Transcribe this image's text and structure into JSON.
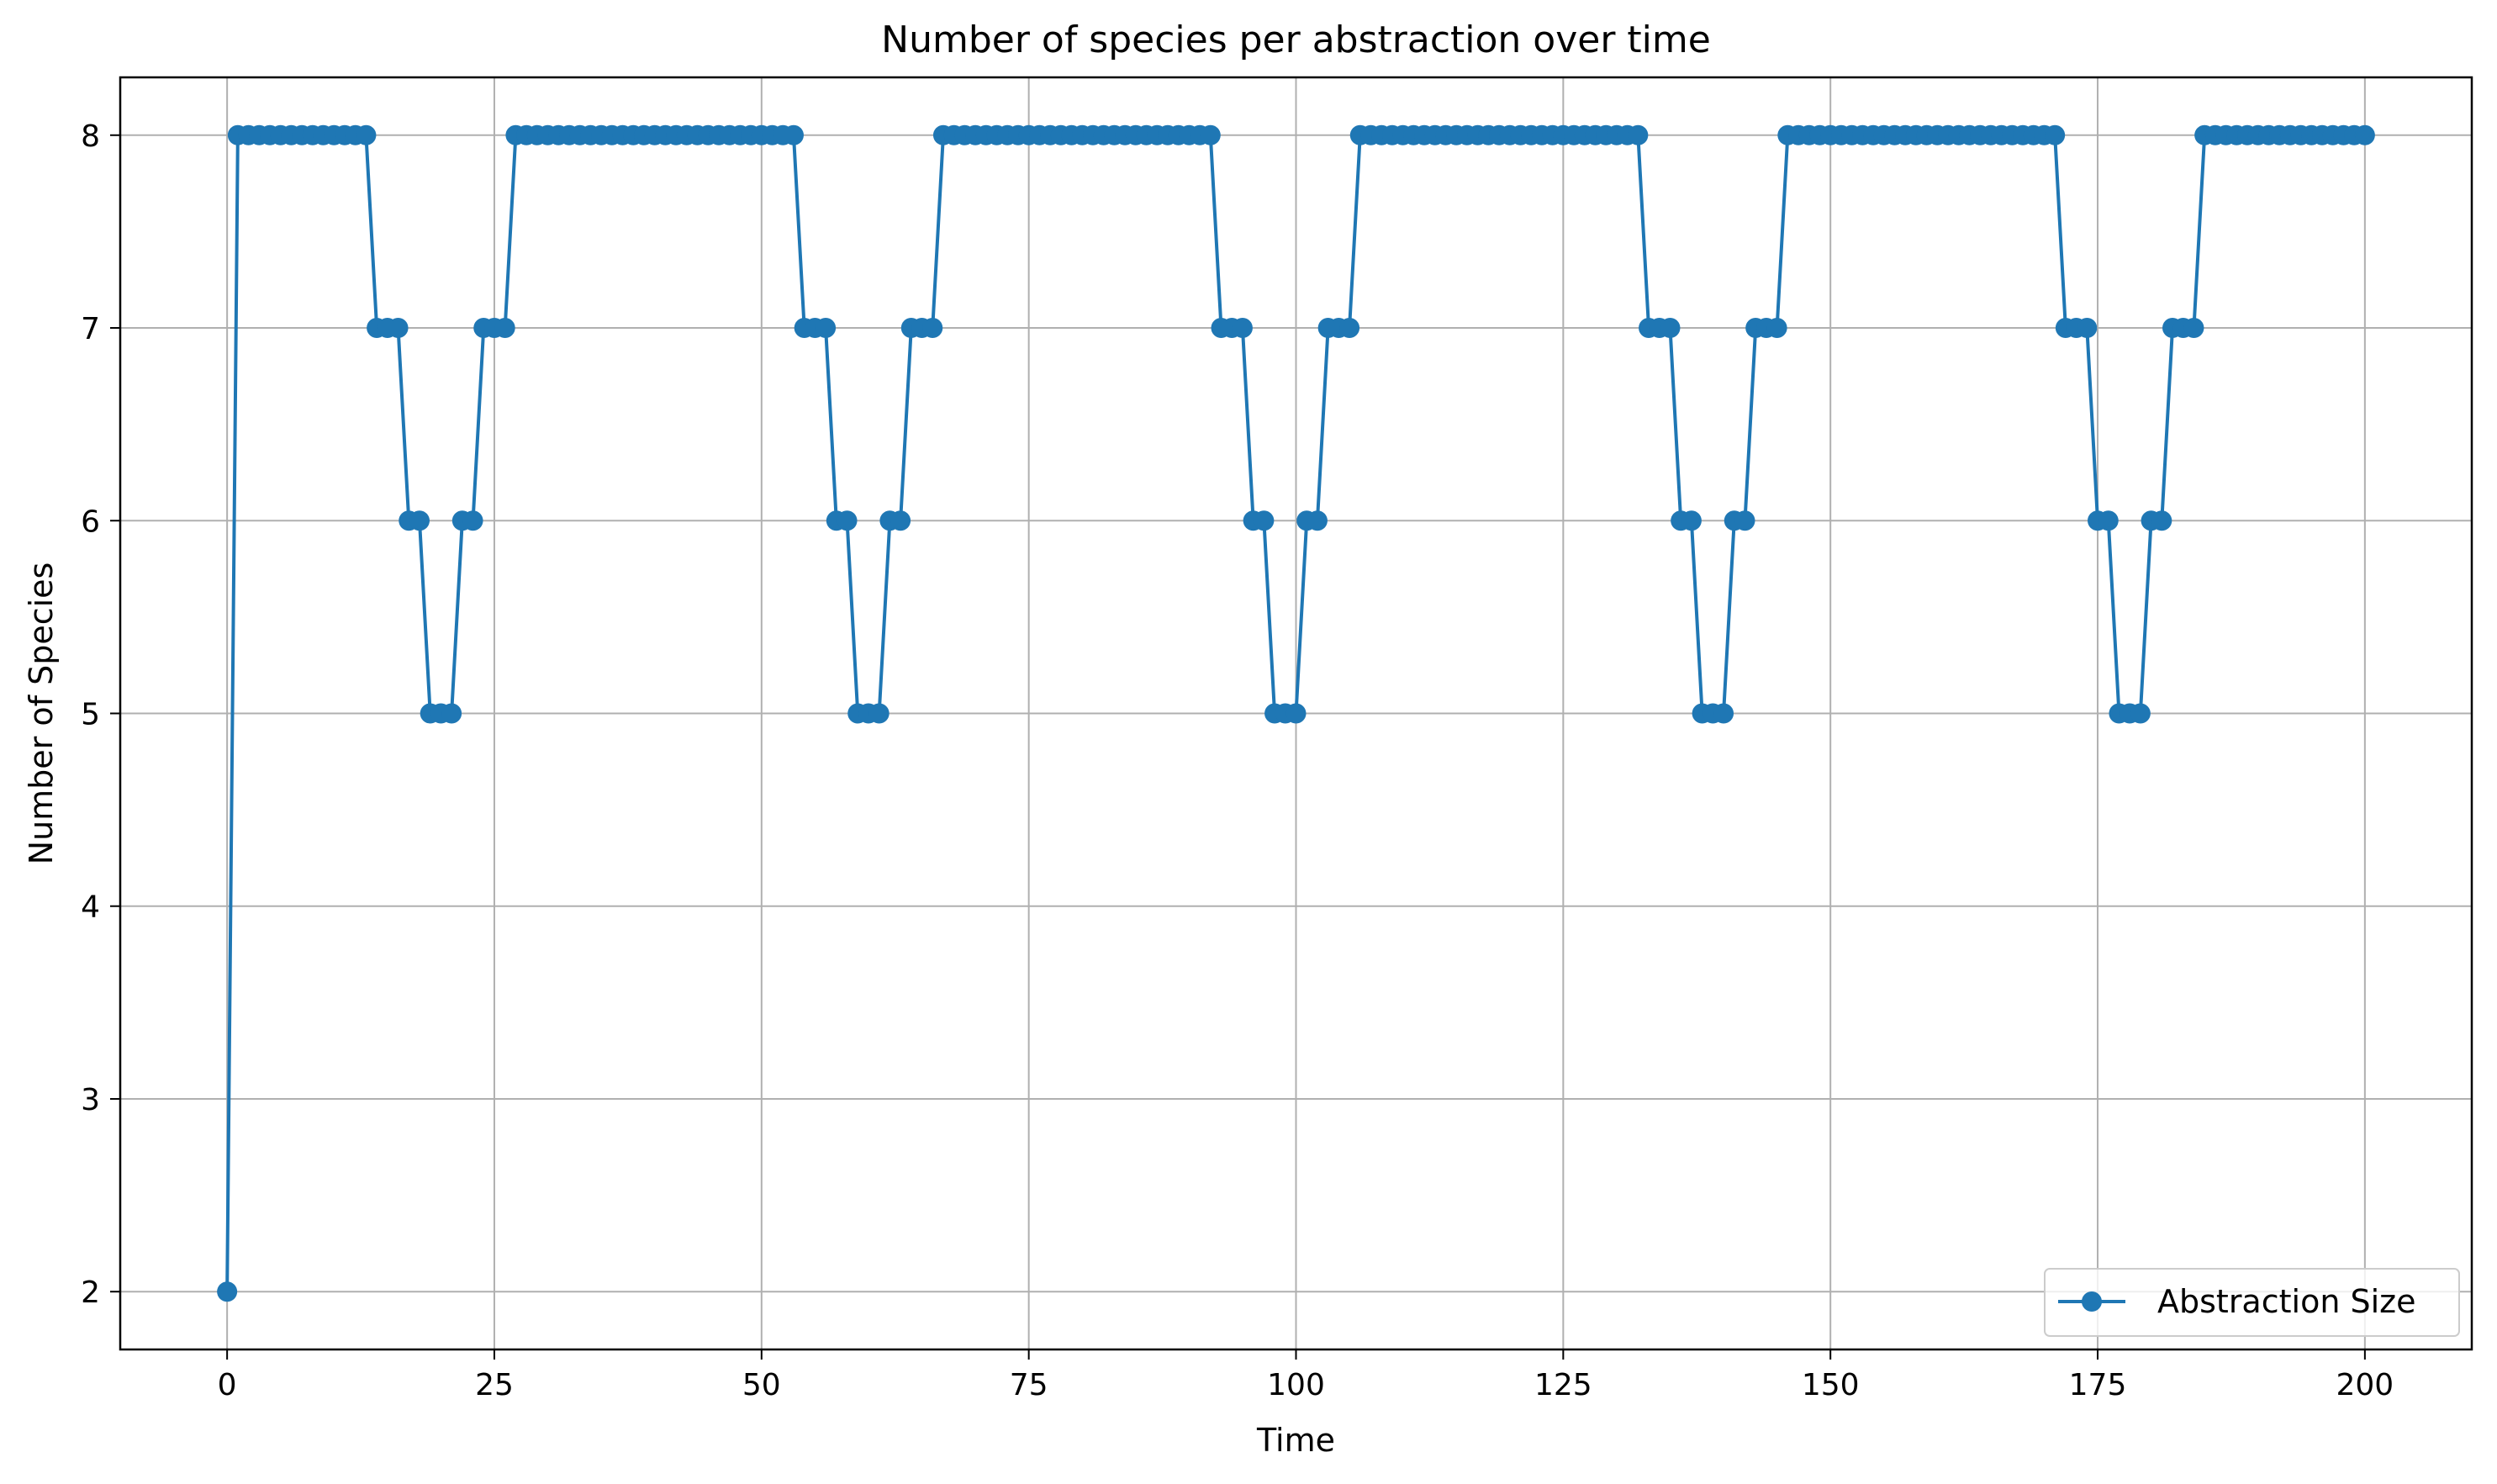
{
  "chart_data": {
    "type": "line",
    "title": "Number of species per abstraction over time",
    "xlabel": "Time",
    "ylabel": "Number of Species",
    "xlim": [
      -10,
      210
    ],
    "ylim": [
      1.7,
      8.3
    ],
    "xticks": [
      0,
      25,
      50,
      75,
      100,
      125,
      150,
      175,
      200
    ],
    "yticks": [
      2,
      3,
      4,
      5,
      6,
      7,
      8
    ],
    "grid": true,
    "legend_position": "lower-right",
    "colors": {
      "series": "#1f77b4",
      "grid": "#b0b0b0"
    },
    "series": [
      {
        "name": "Abstraction Size",
        "marker": "circle",
        "segments": [
          {
            "from": 0,
            "to": 0,
            "value": 2
          },
          {
            "from": 1,
            "to": 13,
            "value": 8
          },
          {
            "from": 14,
            "to": 16,
            "value": 7
          },
          {
            "from": 17,
            "to": 18,
            "value": 6
          },
          {
            "from": 19,
            "to": 21,
            "value": 5
          },
          {
            "from": 22,
            "to": 23,
            "value": 6
          },
          {
            "from": 24,
            "to": 26,
            "value": 7
          },
          {
            "from": 27,
            "to": 53,
            "value": 8
          },
          {
            "from": 54,
            "to": 56,
            "value": 7
          },
          {
            "from": 57,
            "to": 58,
            "value": 6
          },
          {
            "from": 59,
            "to": 61,
            "value": 5
          },
          {
            "from": 62,
            "to": 63,
            "value": 6
          },
          {
            "from": 64,
            "to": 66,
            "value": 7
          },
          {
            "from": 67,
            "to": 92,
            "value": 8
          },
          {
            "from": 93,
            "to": 95,
            "value": 7
          },
          {
            "from": 96,
            "to": 97,
            "value": 6
          },
          {
            "from": 98,
            "to": 100,
            "value": 5
          },
          {
            "from": 101,
            "to": 102,
            "value": 6
          },
          {
            "from": 103,
            "to": 105,
            "value": 7
          },
          {
            "from": 106,
            "to": 132,
            "value": 8
          },
          {
            "from": 133,
            "to": 135,
            "value": 7
          },
          {
            "from": 136,
            "to": 137,
            "value": 6
          },
          {
            "from": 138,
            "to": 140,
            "value": 5
          },
          {
            "from": 141,
            "to": 142,
            "value": 6
          },
          {
            "from": 143,
            "to": 145,
            "value": 7
          },
          {
            "from": 146,
            "to": 171,
            "value": 8
          },
          {
            "from": 172,
            "to": 174,
            "value": 7
          },
          {
            "from": 175,
            "to": 176,
            "value": 6
          },
          {
            "from": 177,
            "to": 179,
            "value": 5
          },
          {
            "from": 180,
            "to": 181,
            "value": 6
          },
          {
            "from": 182,
            "to": 184,
            "value": 7
          },
          {
            "from": 185,
            "to": 200,
            "value": 8
          }
        ]
      }
    ]
  }
}
